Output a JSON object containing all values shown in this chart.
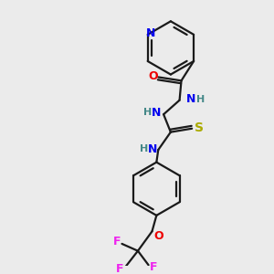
{
  "background_color": "#ebebeb",
  "bond_color": "#1a1a1a",
  "atom_colors": {
    "N": "#0000ee",
    "O": "#ee0000",
    "S": "#aaaa00",
    "F": "#ee22ee",
    "H": "#448888",
    "C": "#1a1a1a"
  },
  "figsize": [
    3.0,
    3.0
  ],
  "dpi": 100,
  "lw": 1.6
}
